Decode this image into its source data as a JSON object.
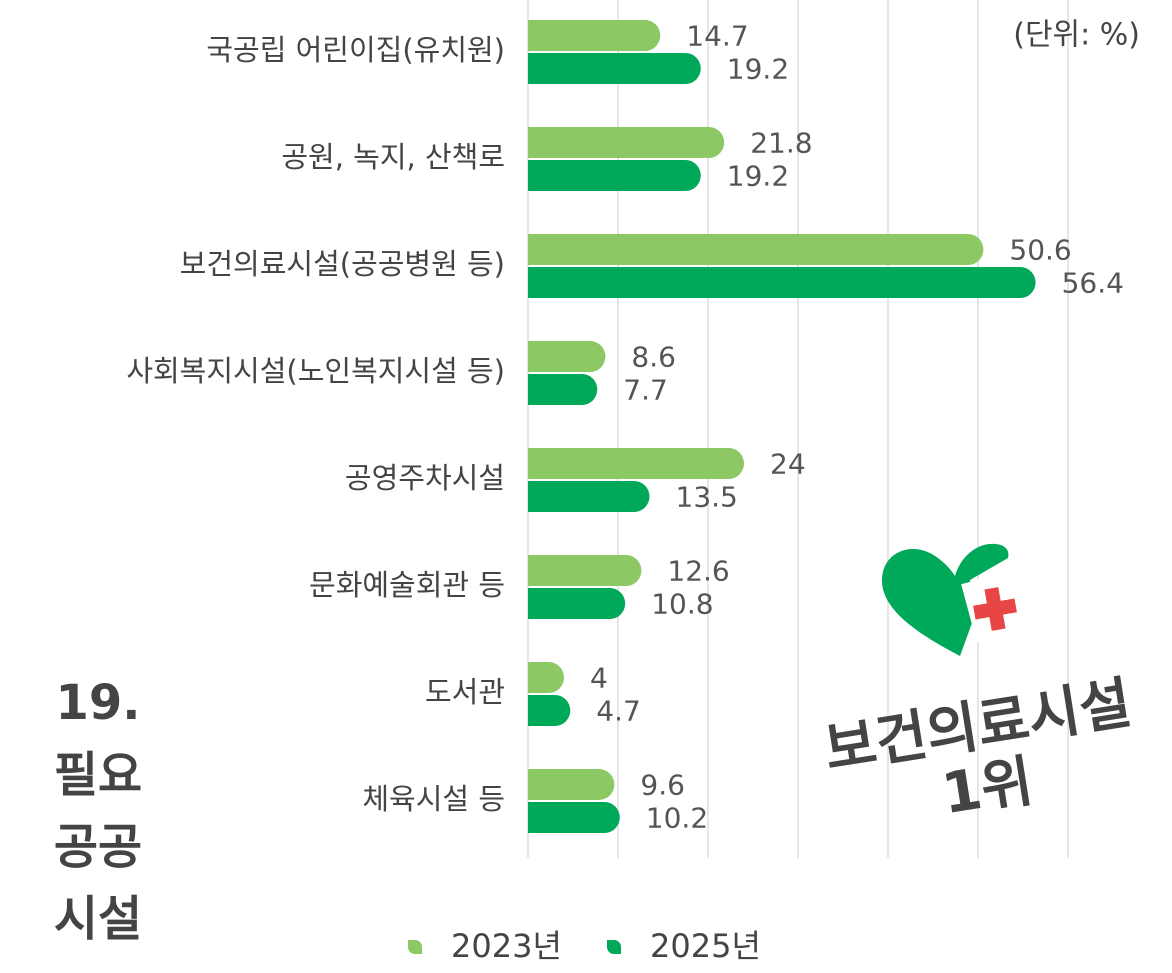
{
  "chart_data": {
    "type": "hbar",
    "title_lines": [
      "19.",
      "필요",
      "공공",
      "시설"
    ],
    "unit_label": "(단위: %)",
    "annotation_lines": [
      "보건의료시설",
      "1위"
    ],
    "categories": [
      "국공립 어린이집(유치원)",
      "공원, 녹지, 산책로",
      "보건의료시설(공공병원 등)",
      "사회복지시설(노인복지시설 등)",
      "공영주차시설",
      "문화예술회관 등",
      "도서관",
      "체육시설 등"
    ],
    "series": [
      {
        "name": "2023년",
        "color": "#8cc863",
        "values": [
          14.7,
          21.8,
          50.6,
          8.6,
          24,
          12.6,
          4,
          9.6
        ]
      },
      {
        "name": "2025년",
        "color": "#00a85a",
        "values": [
          19.2,
          19.2,
          56.4,
          7.7,
          13.5,
          10.8,
          4.7,
          10.2
        ]
      }
    ],
    "xlim": [
      0,
      60
    ],
    "xticks": [
      0,
      10,
      20,
      30,
      40,
      50,
      60
    ],
    "grid": true,
    "legend": "bottom"
  }
}
